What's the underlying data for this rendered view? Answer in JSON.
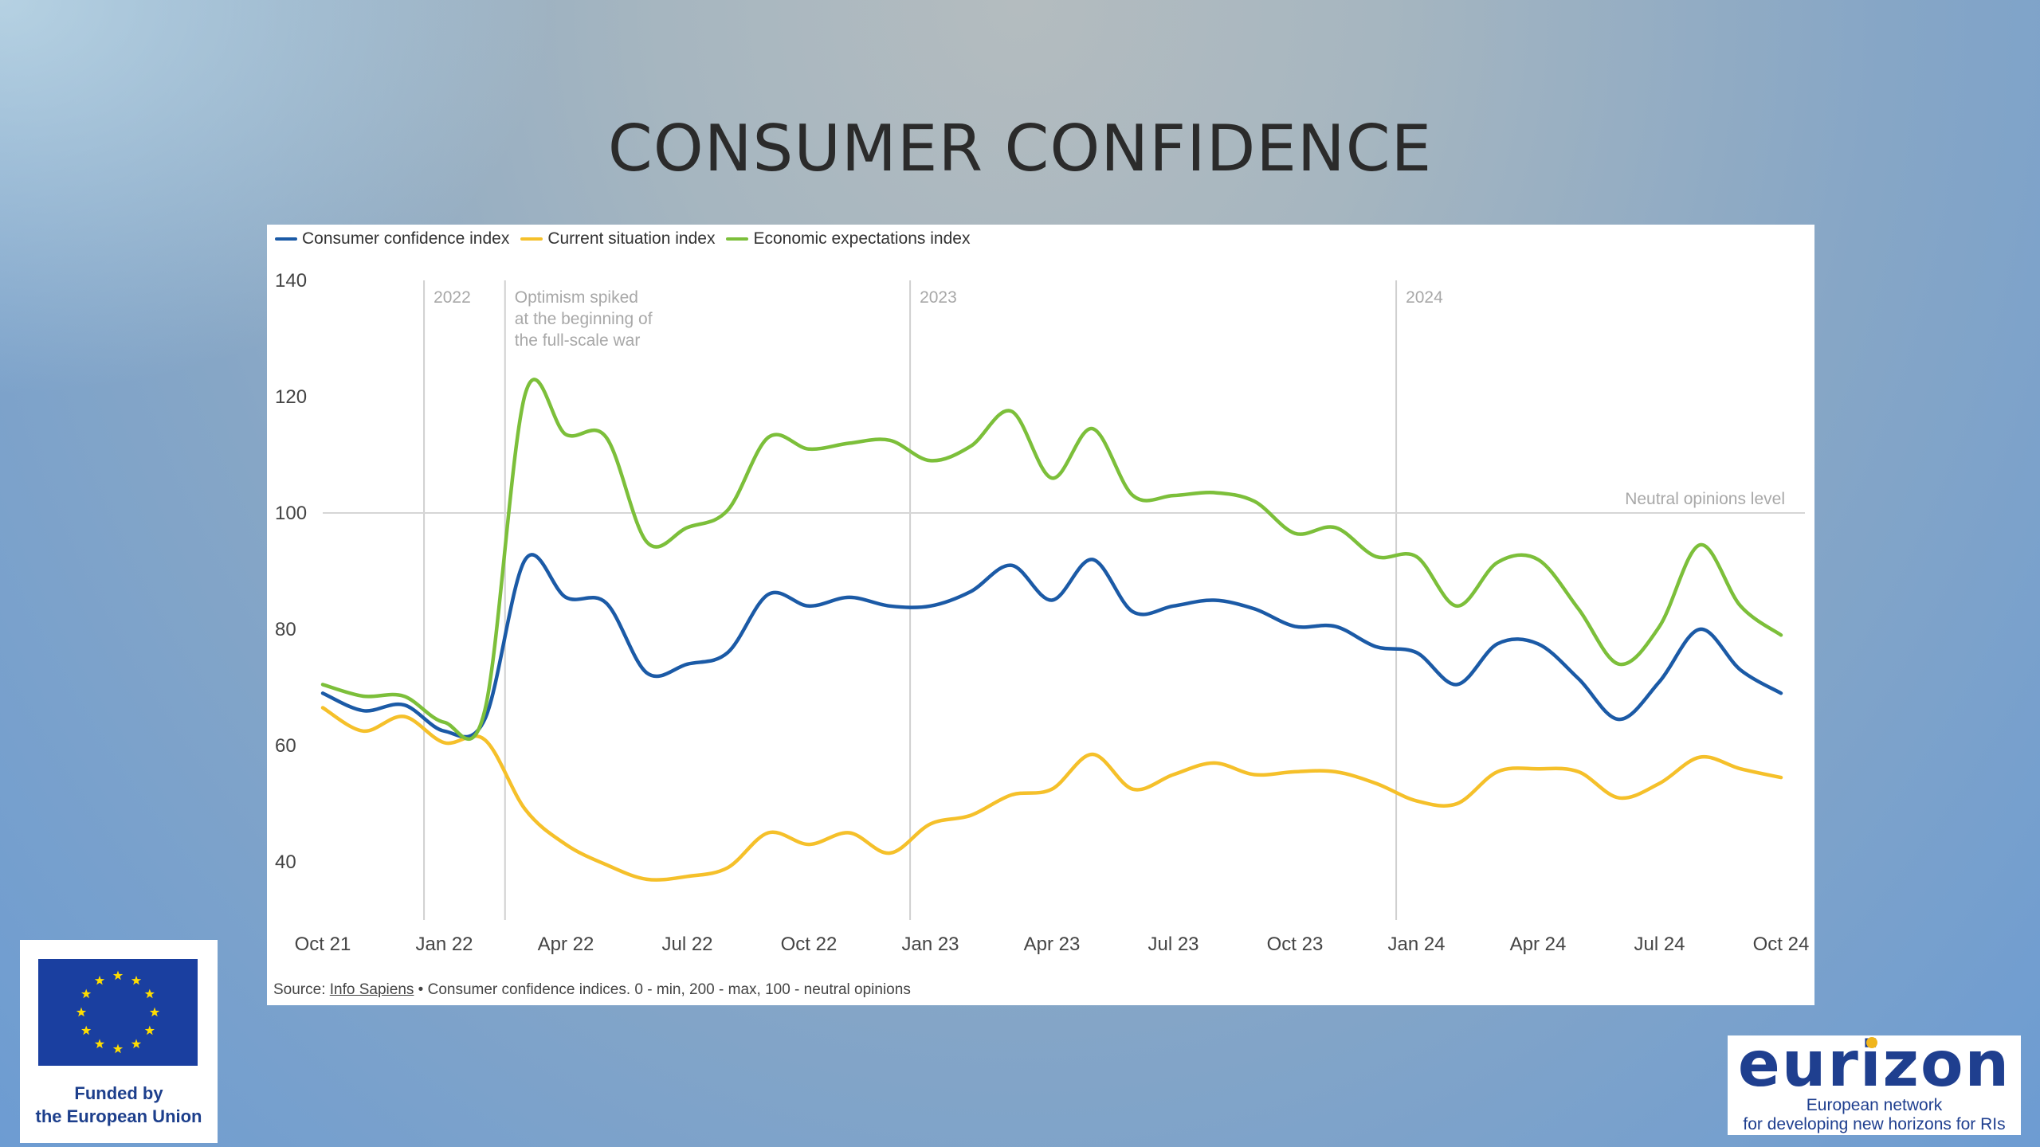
{
  "slide": {
    "title": "CONSUMER CONFIDENCE"
  },
  "chart_data": {
    "type": "line",
    "title": "",
    "xlabel": "",
    "ylabel": "",
    "ylim": [
      30,
      140
    ],
    "yticks": [
      40,
      60,
      80,
      100,
      120,
      140
    ],
    "xtick_labels": [
      "Oct 21",
      "Jan 22",
      "Apr 22",
      "Jul 22",
      "Oct 22",
      "Jan 23",
      "Apr 23",
      "Jul 23",
      "Oct 23",
      "Jan 24",
      "Apr 24",
      "Jul 24",
      "Oct 24"
    ],
    "legend_position": "top-left",
    "grid": false,
    "x": [
      0,
      1,
      2,
      3,
      4,
      5,
      6,
      7,
      8,
      9,
      10,
      11,
      12,
      13,
      14,
      15,
      16,
      17,
      18,
      19,
      20,
      21,
      22,
      23,
      24,
      25,
      26,
      27,
      28,
      29,
      30,
      31,
      32,
      33,
      34,
      35,
      36
    ],
    "series": [
      {
        "name": "Consumer confidence index",
        "color": "#1b5aa6",
        "values": [
          69,
          66,
          67,
          62.5,
          64.5,
          92,
          85.5,
          84.5,
          72.5,
          74,
          76,
          86,
          84,
          85.5,
          84,
          84,
          86.5,
          91,
          85,
          92,
          83,
          84,
          85,
          83.5,
          80.5,
          80.5,
          77,
          76,
          70.5,
          77.5,
          77.5,
          71.5,
          64.5,
          71,
          80,
          73,
          69
        ]
      },
      {
        "name": "Current situation index",
        "color": "#f5c02a",
        "values": [
          66.5,
          62.5,
          65,
          60.5,
          61,
          49,
          43,
          39.5,
          37,
          37.5,
          39,
          45,
          43,
          45,
          41.5,
          46.5,
          48,
          51.5,
          52.5,
          58.5,
          52.5,
          55,
          57,
          55,
          55.5,
          55.5,
          53.5,
          50.5,
          50,
          55.5,
          56,
          55.5,
          51,
          53.5,
          58,
          56,
          54.5
        ]
      },
      {
        "name": "Economic expectations index",
        "color": "#7cbf3a",
        "values": [
          70.5,
          68.5,
          68.5,
          64,
          66,
          120.5,
          113.5,
          113,
          95,
          97.5,
          100.5,
          113,
          111,
          112,
          112.5,
          109,
          111.5,
          117.5,
          106,
          114.5,
          103,
          103,
          103.5,
          102,
          96.5,
          97.5,
          92.5,
          92.5,
          84,
          91.5,
          92,
          83.5,
          74,
          80.5,
          94.5,
          84,
          79
        ]
      }
    ],
    "year_markers": [
      {
        "label": "2022",
        "x": 2.5
      },
      {
        "label": "2023",
        "x": 14.5
      },
      {
        "label": "2024",
        "x": 26.5
      }
    ],
    "annotation": {
      "x": 4.5,
      "lines": [
        "Optimism spiked",
        "at the beginning of",
        "the full-scale war"
      ]
    },
    "reference_line": {
      "y": 100,
      "label": "Neutral opinions level"
    }
  },
  "legend": {
    "items": [
      {
        "label": "Consumer confidence index",
        "color": "#1b5aa6"
      },
      {
        "label": "Current situation index",
        "color": "#f5c02a"
      },
      {
        "label": "Economic expectations index",
        "color": "#7cbf3a"
      }
    ]
  },
  "source": {
    "prefix": "Source: ",
    "link": "Info Sapiens",
    "rest": " • Consumer confidence indices. 0 - min, 200 - max, 100 - neutral opinions"
  },
  "logos": {
    "eu": {
      "line1": "Funded by",
      "line2": "the European Union",
      "flag_color": "#1a3fa0",
      "star_color": "#ffdd00"
    },
    "eurizon": {
      "word": "eurizon",
      "line1": "European network",
      "line2": "for developing new horizons for RIs"
    }
  }
}
